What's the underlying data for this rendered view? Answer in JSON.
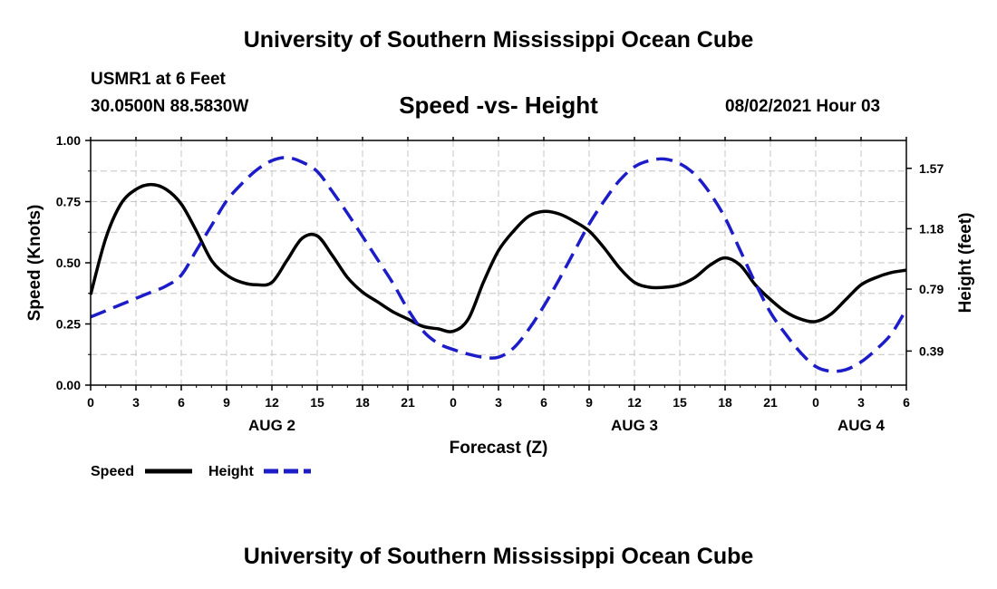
{
  "header": {
    "title_top": "University of Southern Mississippi Ocean Cube",
    "station": "USMR1 at 6 Feet",
    "coords": "30.0500N  88.5830W",
    "subtitle": "Speed -vs- Height",
    "datetime": "08/02/2021 Hour 03"
  },
  "footer": {
    "title_bottom": "University of Southern Mississippi Ocean Cube"
  },
  "colors": {
    "speed": "#000000",
    "height": "#1c1cc8",
    "grid": "#c4c4c4",
    "axis": "#000000"
  },
  "chart_data": {
    "type": "line",
    "title": "Speed -vs- Height",
    "xlabel": "Forecast (Z)",
    "ylabel": "Speed (Knots)",
    "y2label": "Height (feet)",
    "xlim": [
      0,
      54
    ],
    "ylim": [
      0,
      1
    ],
    "y2lim": [
      0.17,
      1.75
    ],
    "x_ticks": [
      {
        "x": 0,
        "label": "0"
      },
      {
        "x": 3,
        "label": "3"
      },
      {
        "x": 6,
        "label": "6"
      },
      {
        "x": 9,
        "label": "9"
      },
      {
        "x": 12,
        "label": "12"
      },
      {
        "x": 15,
        "label": "15"
      },
      {
        "x": 18,
        "label": "18"
      },
      {
        "x": 21,
        "label": "21"
      },
      {
        "x": 24,
        "label": "0"
      },
      {
        "x": 27,
        "label": "3"
      },
      {
        "x": 30,
        "label": "6"
      },
      {
        "x": 33,
        "label": "9"
      },
      {
        "x": 36,
        "label": "12"
      },
      {
        "x": 39,
        "label": "15"
      },
      {
        "x": 42,
        "label": "18"
      },
      {
        "x": 45,
        "label": "21"
      },
      {
        "x": 48,
        "label": "0"
      },
      {
        "x": 51,
        "label": "3"
      },
      {
        "x": 54,
        "label": "6"
      }
    ],
    "y_ticks": [
      {
        "y": 0,
        "label": "0.00"
      },
      {
        "y": 0.25,
        "label": "0.25"
      },
      {
        "y": 0.5,
        "label": "0.50"
      },
      {
        "y": 0.75,
        "label": "0.75"
      },
      {
        "y": 1.0,
        "label": "1.00"
      }
    ],
    "y2_ticks": [
      {
        "y": 0.39,
        "label": "0.39"
      },
      {
        "y": 0.79,
        "label": "0.79"
      },
      {
        "y": 1.18,
        "label": "1.18"
      },
      {
        "y": 1.57,
        "label": "1.57"
      }
    ],
    "day_labels": [
      {
        "x": 12,
        "label": "AUG 2"
      },
      {
        "x": 36,
        "label": "AUG 3"
      },
      {
        "x": 51,
        "label": "AUG 4"
      }
    ],
    "legend": [
      {
        "name": "Speed",
        "style": "solid"
      },
      {
        "name": "Height",
        "style": "dashed"
      }
    ],
    "series": [
      {
        "name": "Speed",
        "axis": "left",
        "style": "solid",
        "points": [
          [
            0,
            0.37
          ],
          [
            1,
            0.6
          ],
          [
            2,
            0.74
          ],
          [
            3,
            0.8
          ],
          [
            4,
            0.82
          ],
          [
            5,
            0.8
          ],
          [
            6,
            0.74
          ],
          [
            7,
            0.63
          ],
          [
            8,
            0.51
          ],
          [
            9,
            0.45
          ],
          [
            10,
            0.42
          ],
          [
            11,
            0.41
          ],
          [
            12,
            0.42
          ],
          [
            13,
            0.51
          ],
          [
            14,
            0.6
          ],
          [
            15,
            0.61
          ],
          [
            16,
            0.53
          ],
          [
            17,
            0.44
          ],
          [
            18,
            0.38
          ],
          [
            19,
            0.34
          ],
          [
            20,
            0.3
          ],
          [
            21,
            0.27
          ],
          [
            22,
            0.24
          ],
          [
            23,
            0.23
          ],
          [
            24,
            0.22
          ],
          [
            25,
            0.27
          ],
          [
            26,
            0.42
          ],
          [
            27,
            0.55
          ],
          [
            28,
            0.63
          ],
          [
            29,
            0.69
          ],
          [
            30,
            0.71
          ],
          [
            31,
            0.7
          ],
          [
            32,
            0.67
          ],
          [
            33,
            0.63
          ],
          [
            34,
            0.56
          ],
          [
            35,
            0.48
          ],
          [
            36,
            0.42
          ],
          [
            37,
            0.4
          ],
          [
            38,
            0.4
          ],
          [
            39,
            0.41
          ],
          [
            40,
            0.44
          ],
          [
            41,
            0.49
          ],
          [
            42,
            0.52
          ],
          [
            43,
            0.49
          ],
          [
            44,
            0.41
          ],
          [
            45,
            0.35
          ],
          [
            46,
            0.3
          ],
          [
            47,
            0.27
          ],
          [
            48,
            0.26
          ],
          [
            49,
            0.29
          ],
          [
            50,
            0.35
          ],
          [
            51,
            0.41
          ],
          [
            52,
            0.44
          ],
          [
            53,
            0.46
          ],
          [
            54,
            0.47
          ]
        ]
      },
      {
        "name": "Height",
        "axis": "right",
        "style": "dashed",
        "points": [
          [
            0,
            0.61
          ],
          [
            1,
            0.65
          ],
          [
            2,
            0.69
          ],
          [
            3,
            0.73
          ],
          [
            4,
            0.77
          ],
          [
            5,
            0.81
          ],
          [
            6,
            0.88
          ],
          [
            7,
            1.04
          ],
          [
            8,
            1.2
          ],
          [
            9,
            1.36
          ],
          [
            10,
            1.47
          ],
          [
            11,
            1.56
          ],
          [
            12,
            1.62
          ],
          [
            13,
            1.64
          ],
          [
            14,
            1.61
          ],
          [
            15,
            1.55
          ],
          [
            16,
            1.42
          ],
          [
            17,
            1.28
          ],
          [
            18,
            1.13
          ],
          [
            19,
            0.98
          ],
          [
            20,
            0.83
          ],
          [
            21,
            0.66
          ],
          [
            22,
            0.52
          ],
          [
            23,
            0.44
          ],
          [
            24,
            0.4
          ],
          [
            25,
            0.37
          ],
          [
            26,
            0.35
          ],
          [
            27,
            0.35
          ],
          [
            28,
            0.41
          ],
          [
            29,
            0.53
          ],
          [
            30,
            0.68
          ],
          [
            31,
            0.85
          ],
          [
            32,
            1.03
          ],
          [
            33,
            1.21
          ],
          [
            34,
            1.36
          ],
          [
            35,
            1.49
          ],
          [
            36,
            1.58
          ],
          [
            37,
            1.62
          ],
          [
            38,
            1.63
          ],
          [
            39,
            1.6
          ],
          [
            40,
            1.53
          ],
          [
            41,
            1.41
          ],
          [
            42,
            1.25
          ],
          [
            43,
            1.04
          ],
          [
            44,
            0.83
          ],
          [
            45,
            0.64
          ],
          [
            46,
            0.5
          ],
          [
            47,
            0.38
          ],
          [
            48,
            0.29
          ],
          [
            49,
            0.26
          ],
          [
            50,
            0.27
          ],
          [
            51,
            0.32
          ],
          [
            52,
            0.4
          ],
          [
            53,
            0.5
          ],
          [
            54,
            0.66
          ]
        ]
      }
    ]
  }
}
